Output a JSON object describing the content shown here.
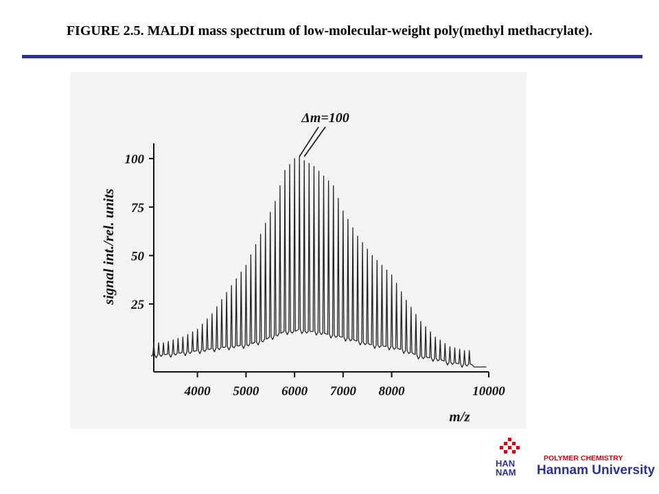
{
  "slide": {
    "title": "FIGURE 2.5. MALDI mass spectrum of low-molecular-weight poly(methyl methacrylate).",
    "accent_color": "#2e3192"
  },
  "logo": {
    "tagline": "POLYMER CHEMISTRY",
    "name": "Hannam University",
    "mark_text": [
      "HAN",
      "NAM"
    ],
    "mark_color": "#d7000f",
    "text_color": "#2e3192"
  },
  "chart_data": {
    "type": "line",
    "title": "",
    "xlabel": "m/z",
    "ylabel": "signal int./rel. units",
    "annotation": "Δm=100",
    "xlim": [
      3100,
      10000
    ],
    "ylim": [
      -10,
      105
    ],
    "x_ticks": [
      4000,
      5000,
      6000,
      7000,
      8000,
      10000
    ],
    "x_tick_labels": [
      "4000",
      "5000",
      "6000",
      "7000",
      "8000",
      "10000"
    ],
    "y_ticks": [
      25,
      50,
      75,
      100
    ],
    "y_tick_labels": [
      "25",
      "50",
      "75",
      "100"
    ],
    "peak_spacing": 100,
    "series": [
      {
        "mz": [
          3300,
          3700,
          4000,
          4300,
          4600,
          5000,
          5300,
          5600,
          5800,
          6000,
          6100,
          6200,
          6400,
          6600,
          6800,
          7000,
          7300,
          7600,
          8000,
          8300,
          8600,
          8900,
          9200,
          9500
        ],
        "peak_intensity": [
          5,
          8,
          12,
          20,
          31,
          45,
          61,
          78,
          94,
          100,
          101,
          99,
          96,
          91,
          86,
          73,
          60,
          50,
          40,
          27,
          16,
          8,
          3,
          1
        ],
        "baseline": [
          -2,
          -1,
          0,
          1,
          2,
          3,
          5,
          8,
          10,
          10,
          11,
          10,
          10,
          9,
          8,
          7,
          5,
          3,
          2,
          0,
          -3,
          -4,
          -6,
          -7
        ]
      }
    ]
  }
}
